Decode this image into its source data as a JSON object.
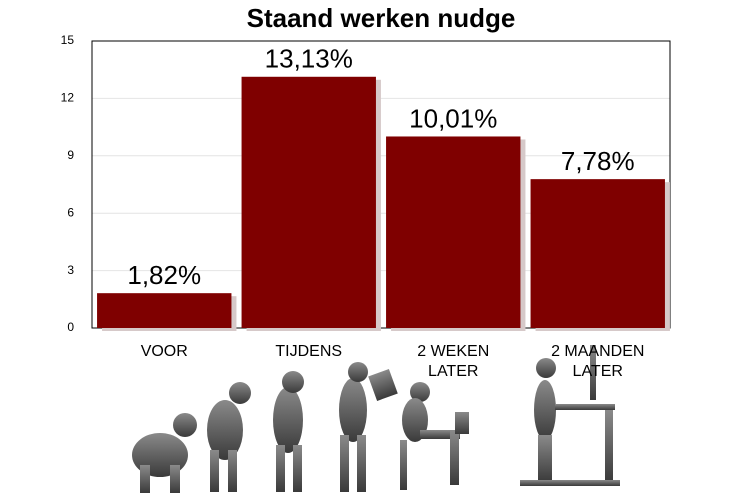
{
  "chart_data": {
    "type": "bar",
    "title": "Staand werken nudge",
    "categories": [
      "VOOR",
      "TIJDENS",
      "2 WEKEN LATER",
      "2 MAANDEN LATER"
    ],
    "values": [
      1.82,
      13.13,
      10.01,
      7.78
    ],
    "value_labels": [
      "1,82%",
      "13,13%",
      "10,01%",
      "7,78%"
    ],
    "color": "#7f0000",
    "ylim": [
      0,
      15
    ],
    "yticks": [
      0,
      3,
      6,
      9,
      12,
      15
    ],
    "grid": true
  }
}
